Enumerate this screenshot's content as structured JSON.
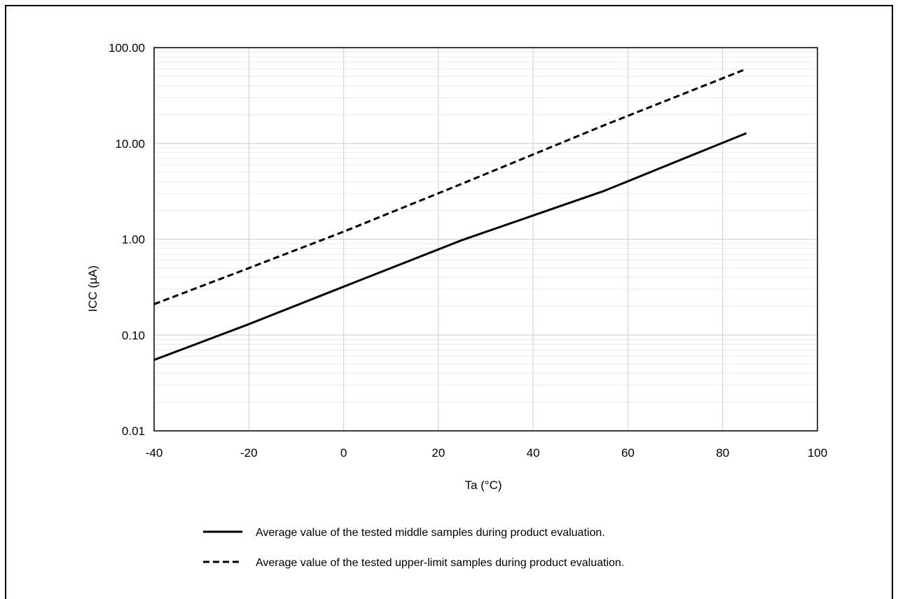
{
  "chart_data": {
    "type": "line",
    "title": "",
    "xlabel": "Ta (°C)",
    "ylabel": "ICC (µA)",
    "xlim": [
      -40,
      100
    ],
    "ylim": [
      0.01,
      100
    ],
    "y_scale": "log",
    "x_ticks": [
      "-40",
      "-20",
      "0",
      "20",
      "40",
      "60",
      "80",
      "100"
    ],
    "y_ticks": [
      "0.01",
      "0.10",
      "1.00",
      "10.00",
      "100.00"
    ],
    "grid": true,
    "legend_position": "bottom",
    "series": [
      {
        "name": "Average value of the tested middle samples during product evaluation.",
        "line_style": "solid",
        "x": [
          -40,
          -20,
          0,
          25,
          55,
          85
        ],
        "y": [
          0.055,
          0.13,
          0.32,
          0.98,
          3.2,
          12.8
        ]
      },
      {
        "name": "Average value of the tested upper-limit samples during product evaluation.",
        "line_style": "dashed",
        "x": [
          -40,
          -20,
          0,
          25,
          55,
          85
        ],
        "y": [
          0.21,
          0.5,
          1.2,
          3.8,
          15.5,
          60.0
        ]
      }
    ]
  },
  "colors": {
    "line": "#000000",
    "major_grid": "#d4d4d4",
    "minor_grid": "#ebebeb",
    "axis": "#000000"
  }
}
